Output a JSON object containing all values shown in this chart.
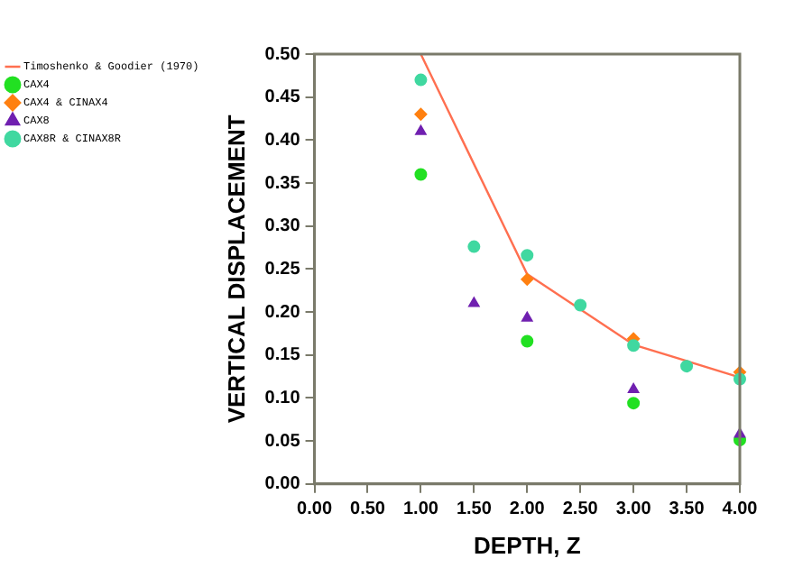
{
  "chart_data": {
    "type": "scatter",
    "xlabel": "DEPTH, Z",
    "ylabel": "VERTICAL DISPLACEMENT",
    "xlim": [
      0,
      4
    ],
    "ylim": [
      0,
      0.5
    ],
    "xticks": [
      {
        "value": 0,
        "label": "0.00"
      },
      {
        "value": 0.5,
        "label": "0.50"
      },
      {
        "value": 1,
        "label": "1.00"
      },
      {
        "value": 1.5,
        "label": "1.50"
      },
      {
        "value": 2,
        "label": "2.00"
      },
      {
        "value": 2.5,
        "label": "2.50"
      },
      {
        "value": 3,
        "label": "3.00"
      },
      {
        "value": 3.5,
        "label": "3.50"
      },
      {
        "value": 4,
        "label": "4.00"
      }
    ],
    "yticks": [
      {
        "value": 0,
        "label": "0.00"
      },
      {
        "value": 0.05,
        "label": "0.05"
      },
      {
        "value": 0.1,
        "label": "0.10"
      },
      {
        "value": 0.15,
        "label": "0.15"
      },
      {
        "value": 0.2,
        "label": "0.20"
      },
      {
        "value": 0.25,
        "label": "0.25"
      },
      {
        "value": 0.3,
        "label": "0.30"
      },
      {
        "value": 0.35,
        "label": "0.35"
      },
      {
        "value": 0.4,
        "label": "0.40"
      },
      {
        "value": 0.45,
        "label": "0.45"
      },
      {
        "value": 0.5,
        "label": "0.50"
      }
    ],
    "grid": false,
    "legend": "top left",
    "series": [
      {
        "name": "Timoshenko & Goodier (1970)",
        "type": "line",
        "marker": "none",
        "color": "#ff6f50",
        "x": [
          1,
          2,
          3,
          4
        ],
        "values": [
          0.5,
          0.244,
          0.162,
          0.124
        ]
      },
      {
        "name": "CAX4",
        "marker": "circle",
        "color": "#22e022",
        "x": [
          1,
          2,
          3,
          4
        ],
        "values": [
          0.36,
          0.166,
          0.094,
          0.051
        ]
      },
      {
        "name": "CAX4 & CINAX4",
        "marker": "diamond",
        "color": "#ff8010",
        "x": [
          1,
          2,
          3,
          4
        ],
        "values": [
          0.43,
          0.238,
          0.169,
          0.13
        ]
      },
      {
        "name": "CAX8",
        "marker": "triangle",
        "color": "#7020b0",
        "x": [
          1,
          1.5,
          2,
          3,
          4
        ],
        "values": [
          0.41,
          0.21,
          0.193,
          0.11,
          0.058
        ]
      },
      {
        "name": "CAX8R & CINAX8R",
        "marker": "circle",
        "color": "#40d8a0",
        "x": [
          1,
          1.5,
          2,
          2.5,
          3,
          3.5,
          4
        ],
        "values": [
          0.47,
          0.276,
          0.266,
          0.208,
          0.161,
          0.137,
          0.122
        ]
      }
    ]
  }
}
